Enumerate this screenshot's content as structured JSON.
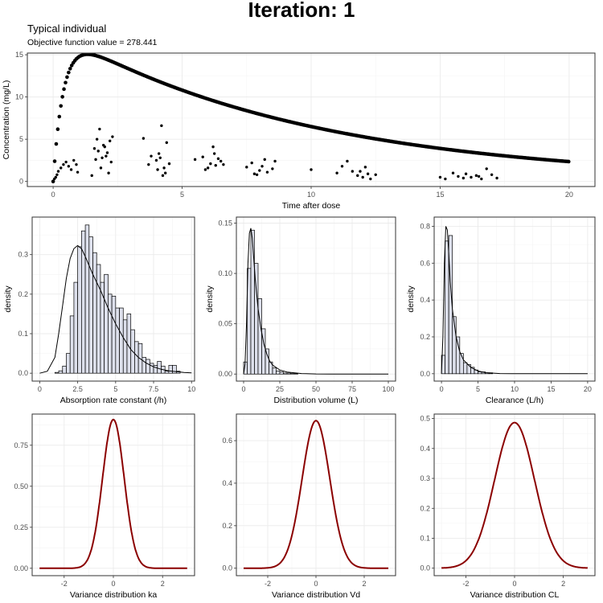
{
  "page": {
    "title": "Iteration: 1",
    "subtitle": "Typical individual",
    "objective_label": "Objective function value = 278.441"
  },
  "colors": {
    "line": "#000000",
    "hist_fill": "#dde0ec",
    "density_line": "#000000",
    "variance_line": "#8b0000",
    "grid": "#ebebeb",
    "panel_border": "#333333"
  },
  "chart_data": [
    {
      "type": "scatter",
      "id": "concentration",
      "xlabel": "Time after dose",
      "ylabel": "Concentration (mg/L)",
      "xlim": [
        -1,
        21
      ],
      "ylim": [
        -0.6,
        15.2
      ],
      "xticks": [
        0,
        5,
        10,
        15,
        20
      ],
      "yticks": [
        0,
        5,
        10,
        15
      ],
      "grid": true,
      "typical_curve": {
        "dose": 100,
        "ka": 2.5,
        "V": 5.8,
        "CL": 0.59,
        "t_start": 0,
        "t_end": 20,
        "note_visible": false
      },
      "observations": {
        "x": [
          0.05,
          0.1,
          0.15,
          0.2,
          0.3,
          0.4,
          0.5,
          0.6,
          0.7,
          0.8,
          0.9,
          0.95,
          1.5,
          1.6,
          1.7,
          1.8,
          1.9,
          2.0,
          2.1,
          2.2,
          2.3,
          1.65,
          1.85,
          2.05,
          2.25,
          1.75,
          1.95,
          2.15,
          3.5,
          3.8,
          4.0,
          4.1,
          4.2,
          4.3,
          4.4,
          4.5,
          3.7,
          4.15,
          4.35,
          4.05,
          4.25,
          5.5,
          5.8,
          6.0,
          6.1,
          6.2,
          6.3,
          6.4,
          6.5,
          6.6,
          5.9,
          6.25,
          7.5,
          7.7,
          7.9,
          8.0,
          8.1,
          8.2,
          8.3,
          8.5,
          7.8,
          8.6,
          10.0,
          11.0,
          11.2,
          11.4,
          11.6,
          11.8,
          12.0,
          12.1,
          12.2,
          12.3,
          11.9,
          12.5,
          15.0,
          15.2,
          15.5,
          15.7,
          15.9,
          16.0,
          16.2,
          16.4,
          16.6,
          16.8,
          17.0,
          17.2,
          16.5
        ],
        "y": [
          0.3,
          0.5,
          0.8,
          1.2,
          1.6,
          2.0,
          2.3,
          1.8,
          1.4,
          2.5,
          2.0,
          1.1,
          0.7,
          3.9,
          5.0,
          6.2,
          2.8,
          4.1,
          3.4,
          4.8,
          5.3,
          2.6,
          1.6,
          3.0,
          2.3,
          3.6,
          4.3,
          1.0,
          5.1,
          3.0,
          2.5,
          3.3,
          6.6,
          1.6,
          4.6,
          2.1,
          2.0,
          2.8,
          1.0,
          1.4,
          0.7,
          2.6,
          2.9,
          1.6,
          2.1,
          4.1,
          1.9,
          2.7,
          2.4,
          2.0,
          1.4,
          3.3,
          1.7,
          2.2,
          0.8,
          1.3,
          1.8,
          2.6,
          1.1,
          1.5,
          0.9,
          2.4,
          1.4,
          1.0,
          1.8,
          2.4,
          1.2,
          0.7,
          0.5,
          1.7,
          0.9,
          0.3,
          1.2,
          0.8,
          0.5,
          0.3,
          1.0,
          0.6,
          0.4,
          0.9,
          0.5,
          0.7,
          0.3,
          1.5,
          0.8,
          0.4,
          0.6
        ]
      }
    },
    {
      "type": "histogram",
      "id": "ka-hist",
      "xlabel": "Absorption rate constant (/h)",
      "ylabel": "density",
      "xlim": [
        -0.5,
        10.2
      ],
      "ylim": [
        -0.02,
        0.395
      ],
      "xticks": [
        0.0,
        2.5,
        5.0,
        7.5,
        10.0
      ],
      "ytick_labels": [
        "0.0",
        "0.1",
        "0.2",
        "0.3"
      ],
      "yticks": [
        0,
        0.1,
        0.2,
        0.3
      ],
      "bins": {
        "start": 0.0,
        "width": 0.25,
        "values": [
          0.0,
          0.0,
          0.0,
          0.0,
          0.002,
          0.006,
          0.018,
          0.05,
          0.145,
          0.23,
          0.32,
          0.36,
          0.375,
          0.345,
          0.305,
          0.275,
          0.23,
          0.25,
          0.2,
          0.195,
          0.165,
          0.165,
          0.135,
          0.15,
          0.11,
          0.08,
          0.075,
          0.04,
          0.035,
          0.025,
          0.02,
          0.03,
          0.018,
          0.005,
          0.02,
          0.02,
          0.005,
          0.0,
          0.0,
          0.0
        ]
      },
      "density": {
        "x": [
          0.0,
          0.5,
          1.0,
          1.25,
          1.5,
          1.75,
          2.0,
          2.25,
          2.5,
          2.75,
          3.0,
          3.5,
          4.0,
          4.5,
          5.0,
          5.5,
          6.0,
          6.5,
          7.0,
          7.5,
          8.0,
          8.5,
          9.0,
          9.5,
          10.0
        ],
        "y": [
          0.0,
          0.005,
          0.04,
          0.1,
          0.17,
          0.24,
          0.29,
          0.315,
          0.323,
          0.315,
          0.295,
          0.25,
          0.21,
          0.165,
          0.125,
          0.09,
          0.06,
          0.04,
          0.026,
          0.016,
          0.01,
          0.006,
          0.004,
          0.002,
          0.001
        ]
      }
    },
    {
      "type": "histogram",
      "id": "vd-hist",
      "xlabel": "Distribution volume (L)",
      "ylabel": "density",
      "xlim": [
        -5,
        105
      ],
      "ylim": [
        -0.007,
        0.156
      ],
      "xticks": [
        0,
        25,
        50,
        75,
        100
      ],
      "ytick_labels": [
        "0.00",
        "0.05",
        "0.10",
        "0.15"
      ],
      "yticks": [
        0,
        0.05,
        0.1,
        0.15
      ],
      "bins": {
        "start": 0.0,
        "width": 2.5,
        "values": [
          0.012,
          0.105,
          0.143,
          0.11,
          0.075,
          0.045,
          0.025,
          0.012,
          0.006,
          0.003,
          0.002,
          0.001,
          0.001,
          0.0005,
          0.0005,
          0.0
        ]
      },
      "density": {
        "x": [
          0,
          1,
          2,
          3,
          4,
          5,
          6,
          7,
          8,
          10,
          12,
          14,
          16,
          18,
          20,
          25,
          30,
          40,
          50,
          60,
          70,
          80,
          90,
          100
        ],
        "y": [
          0.0,
          0.01,
          0.05,
          0.11,
          0.14,
          0.145,
          0.135,
          0.115,
          0.095,
          0.065,
          0.045,
          0.03,
          0.02,
          0.013,
          0.009,
          0.004,
          0.002,
          0.0005,
          0.0001,
          0,
          0,
          0,
          0,
          0
        ]
      }
    },
    {
      "type": "histogram",
      "id": "cl-hist",
      "xlabel": "Clearance (L/h)",
      "ylabel": "density",
      "xlim": [
        -1,
        21
      ],
      "ylim": [
        -0.04,
        0.85
      ],
      "xticks": [
        0,
        5,
        10,
        15,
        20
      ],
      "ytick_labels": [
        "0.0",
        "0.2",
        "0.4",
        "0.6",
        "0.8"
      ],
      "yticks": [
        0,
        0.2,
        0.4,
        0.6,
        0.8
      ],
      "bins": {
        "start": 0.0,
        "width": 0.5,
        "values": [
          0.1,
          0.72,
          0.75,
          0.31,
          0.2,
          0.11,
          0.06,
          0.05,
          0.035,
          0.02,
          0.01,
          0.01,
          0.005,
          0.005,
          0.0
        ]
      },
      "density": {
        "x": [
          0,
          0.2,
          0.4,
          0.6,
          0.8,
          1.0,
          1.2,
          1.5,
          2.0,
          2.5,
          3.0,
          4.0,
          5.0,
          6.0,
          8.0,
          10,
          15,
          20
        ],
        "y": [
          0.0,
          0.2,
          0.6,
          0.8,
          0.78,
          0.65,
          0.5,
          0.35,
          0.2,
          0.12,
          0.075,
          0.035,
          0.015,
          0.006,
          0.001,
          0,
          0,
          0
        ]
      }
    },
    {
      "type": "line",
      "id": "var-ka",
      "xlabel": "Variance distribution ka",
      "ylabel": "",
      "xlim": [
        -3.3,
        3.3
      ],
      "ylim": [
        -0.045,
        0.94
      ],
      "xticks": [
        -2,
        0,
        2
      ],
      "yticks": [
        0,
        0.25,
        0.5,
        0.75
      ],
      "ytick_labels": [
        "0.00",
        "0.25",
        "0.50",
        "0.75"
      ],
      "normal": {
        "sd": 0.44,
        "from": -3,
        "to": 3
      }
    },
    {
      "type": "line",
      "id": "var-vd",
      "xlabel": "Variance distribution Vd",
      "ylabel": "",
      "xlim": [
        -3.3,
        3.3
      ],
      "ylim": [
        -0.035,
        0.725
      ],
      "xticks": [
        -2,
        0,
        2
      ],
      "yticks": [
        0,
        0.2,
        0.4,
        0.6
      ],
      "ytick_labels": [
        "0.0",
        "0.2",
        "0.4",
        "0.6"
      ],
      "normal": {
        "sd": 0.575,
        "from": -3,
        "to": 3
      }
    },
    {
      "type": "line",
      "id": "var-cl",
      "xlabel": "Variance distribution CL",
      "ylabel": "",
      "xlim": [
        -3.3,
        3.3
      ],
      "ylim": [
        -0.025,
        0.515
      ],
      "xticks": [
        -2,
        0,
        2
      ],
      "yticks": [
        0,
        0.1,
        0.2,
        0.3,
        0.4,
        0.5
      ],
      "ytick_labels": [
        "0.0",
        "0.1",
        "0.2",
        "0.3",
        "0.4",
        "0.5"
      ],
      "normal": {
        "sd": 0.82,
        "from": -3,
        "to": 3
      }
    }
  ]
}
